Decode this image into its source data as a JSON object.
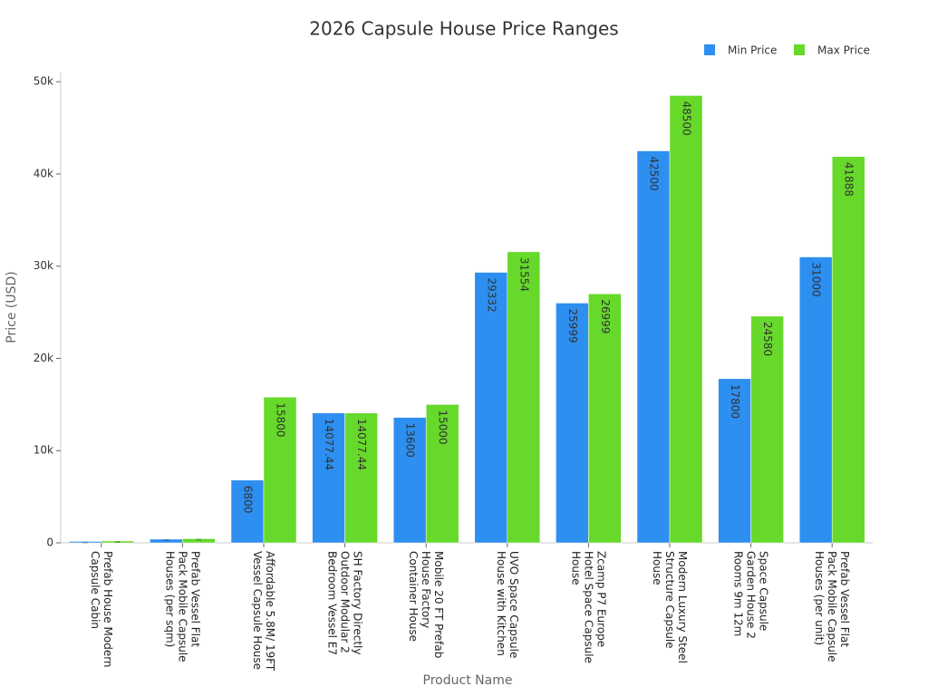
{
  "chart_data": {
    "type": "bar",
    "title": "2026 Capsule House Price Ranges",
    "x_label": "Product Name",
    "y_label": "Price (USD)",
    "categories": [
      "Prefab House Modern Capsule Cabin",
      "Prefab Vessel Flat Pack Mobile Capsule Houses (per sqm)",
      "Affordable 5.8M/ 19FT Vessel Capsule House",
      "SH Factory Directly Outdoor Modular 2 Bedroom Vessel E7",
      "Mobile 20 FT Prefab House Factory Container House",
      "UVO Space Capsule House with Kitchen",
      "Zcamp P7 Europe Hotel Space Capsule House",
      "Modern Luxury Steel Structure Capsule House",
      "Space Capsule Garden House 2 Rooms 9m 12m",
      "Prefab Vessel Flat Pack Mobile Capsule Houses (per unit)"
    ],
    "series": [
      {
        "name": "Min Price",
        "color": "#2d8ff0",
        "values": [
          150,
          400,
          6800,
          14077.44,
          13600,
          29332,
          25999,
          42500,
          17800,
          31000
        ]
      },
      {
        "name": "Max Price",
        "color": "#66d92a",
        "values": [
          200,
          450,
          15800,
          14077.44,
          15000,
          31554,
          26999,
          48500,
          24580,
          41888
        ]
      }
    ],
    "ylim": [
      0,
      51000
    ],
    "yticks": [
      0,
      {
        "value": 10000,
        "label": "10k"
      },
      {
        "value": 20000,
        "label": "20k"
      },
      {
        "value": 30000,
        "label": "30k"
      },
      {
        "value": 40000,
        "label": "40k"
      },
      {
        "value": 50000,
        "label": "50k"
      }
    ],
    "legend": "top-right"
  }
}
